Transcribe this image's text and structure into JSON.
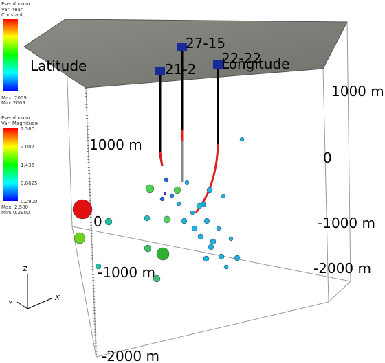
{
  "legend_year": {
    "title": "Pseudocolor",
    "var": "Var: Year",
    "note": "Constant.",
    "max": "Max: 2009.",
    "min": "Min: 2009."
  },
  "legend_magnitude": {
    "title": "Pseudocolor",
    "var": "Var: Magnitude",
    "ticks": [
      "2.580",
      "2.007",
      "1.435",
      "0.8625",
      "0.2900"
    ],
    "max": "Max: 2.580",
    "min": "Min: 0.2900"
  },
  "axes": {
    "latitude": "Latitude",
    "longitude": "Longitude",
    "right_labels": [
      "1000 m",
      "0",
      "-1000 m",
      "-2000 m"
    ],
    "left_labels": [
      "1000 m",
      "0",
      "-1000 m",
      "-2000 m"
    ]
  },
  "wells": [
    "27-15",
    "21-2",
    "22-22"
  ],
  "triad": {
    "z": "Z",
    "y": "Y",
    "x": "X"
  }
}
